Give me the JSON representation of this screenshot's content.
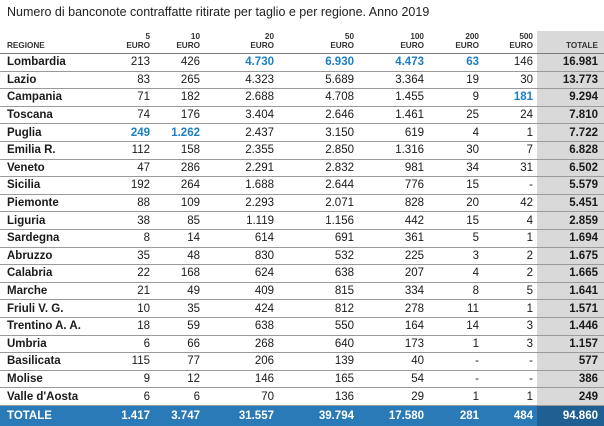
{
  "title": "Numero di banconote contraffatte ritirate per taglio e per regione. Anno 2019",
  "headers": {
    "region": "REGIONE",
    "cols": [
      {
        "value": "5",
        "unit": "EURO"
      },
      {
        "value": "10",
        "unit": "EURO"
      },
      {
        "value": "20",
        "unit": "EURO"
      },
      {
        "value": "50",
        "unit": "EURO"
      },
      {
        "value": "100",
        "unit": "EURO"
      },
      {
        "value": "200",
        "unit": "EURO"
      },
      {
        "value": "500",
        "unit": "EURO"
      }
    ],
    "total": "TOTALE"
  },
  "highlight_color": "#1a7fc4",
  "rows": [
    {
      "region": "Lombardia",
      "values": [
        "213",
        "426",
        "4.730",
        "6.930",
        "4.473",
        "63",
        "146"
      ],
      "total": "16.981",
      "highlight": [
        2,
        3,
        4,
        5
      ]
    },
    {
      "region": "Lazio",
      "values": [
        "83",
        "265",
        "4.323",
        "5.689",
        "3.364",
        "19",
        "30"
      ],
      "total": "13.773",
      "highlight": []
    },
    {
      "region": "Campania",
      "values": [
        "71",
        "182",
        "2.688",
        "4.708",
        "1.455",
        "9",
        "181"
      ],
      "total": "9.294",
      "highlight": [
        6
      ]
    },
    {
      "region": "Toscana",
      "values": [
        "74",
        "176",
        "3.404",
        "2.646",
        "1.461",
        "25",
        "24"
      ],
      "total": "7.810",
      "highlight": []
    },
    {
      "region": "Puglia",
      "values": [
        "249",
        "1.262",
        "2.437",
        "3.150",
        "619",
        "4",
        "1"
      ],
      "total": "7.722",
      "highlight": [
        0,
        1
      ]
    },
    {
      "region": "Emilia R.",
      "values": [
        "112",
        "158",
        "2.355",
        "2.850",
        "1.316",
        "30",
        "7"
      ],
      "total": "6.828",
      "highlight": []
    },
    {
      "region": "Veneto",
      "values": [
        "47",
        "286",
        "2.291",
        "2.832",
        "981",
        "34",
        "31"
      ],
      "total": "6.502",
      "highlight": []
    },
    {
      "region": "Sicilia",
      "values": [
        "192",
        "264",
        "1.688",
        "2.644",
        "776",
        "15",
        "-"
      ],
      "total": "5.579",
      "highlight": []
    },
    {
      "region": "Piemonte",
      "values": [
        "88",
        "109",
        "2.293",
        "2.071",
        "828",
        "20",
        "42"
      ],
      "total": "5.451",
      "highlight": []
    },
    {
      "region": "Liguria",
      "values": [
        "38",
        "85",
        "1.119",
        "1.156",
        "442",
        "15",
        "4"
      ],
      "total": "2.859",
      "highlight": []
    },
    {
      "region": "Sardegna",
      "values": [
        "8",
        "14",
        "614",
        "691",
        "361",
        "5",
        "1"
      ],
      "total": "1.694",
      "highlight": []
    },
    {
      "region": "Abruzzo",
      "values": [
        "35",
        "48",
        "830",
        "532",
        "225",
        "3",
        "2"
      ],
      "total": "1.675",
      "highlight": []
    },
    {
      "region": "Calabria",
      "values": [
        "22",
        "168",
        "624",
        "638",
        "207",
        "4",
        "2"
      ],
      "total": "1.665",
      "highlight": []
    },
    {
      "region": "Marche",
      "values": [
        "21",
        "49",
        "409",
        "815",
        "334",
        "8",
        "5"
      ],
      "total": "1.641",
      "highlight": []
    },
    {
      "region": "Friuli V. G.",
      "values": [
        "10",
        "35",
        "424",
        "812",
        "278",
        "11",
        "1"
      ],
      "total": "1.571",
      "highlight": []
    },
    {
      "region": "Trentino A. A.",
      "values": [
        "18",
        "59",
        "638",
        "550",
        "164",
        "14",
        "3"
      ],
      "total": "1.446",
      "highlight": []
    },
    {
      "region": "Umbria",
      "values": [
        "6",
        "66",
        "268",
        "640",
        "173",
        "1",
        "3"
      ],
      "total": "1.157",
      "highlight": []
    },
    {
      "region": "Basilicata",
      "values": [
        "115",
        "77",
        "206",
        "139",
        "40",
        "-",
        "-"
      ],
      "total": "577",
      "highlight": []
    },
    {
      "region": "Molise",
      "values": [
        "9",
        "12",
        "146",
        "165",
        "54",
        "-",
        "-"
      ],
      "total": "386",
      "highlight": []
    },
    {
      "region": "Valle d'Aosta",
      "values": [
        "6",
        "6",
        "70",
        "136",
        "29",
        "1",
        "1"
      ],
      "total": "249",
      "highlight": []
    }
  ],
  "footer": {
    "label": "TOTALE",
    "values": [
      "1.417",
      "3.747",
      "31.557",
      "39.794",
      "17.580",
      "281",
      "484"
    ],
    "total": "94.860"
  }
}
